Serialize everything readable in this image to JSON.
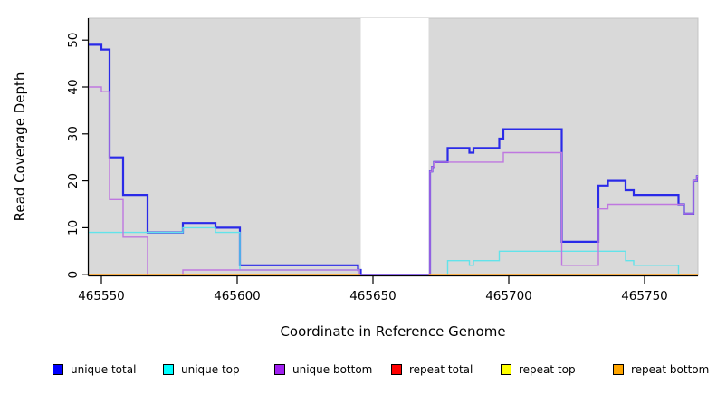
{
  "chart_data": {
    "type": "line",
    "title": "",
    "xlabel": "Coordinate in Reference Genome",
    "ylabel": "Read Coverage Depth",
    "step_type": "step-after",
    "grid": false,
    "legend_position": "bottom-horizontal",
    "xlim": [
      465545.3,
      465769.7
    ],
    "ylim": [
      0,
      54.7
    ],
    "x_ticks": {
      "values": [
        465550,
        465600,
        465650,
        465700,
        465750
      ],
      "labels": [
        "465550",
        "465600",
        "465650",
        "465700",
        "465750"
      ]
    },
    "y_ticks": {
      "values": [
        0,
        10,
        20,
        30,
        40,
        50
      ],
      "labels": [
        "0",
        "10",
        "20",
        "30",
        "40",
        "50"
      ]
    },
    "panel": {
      "background": "#d9d9d9",
      "border": "#c4c4c4"
    },
    "gap_region": {
      "x_start": 465645.5,
      "x_end": 465670.5,
      "color": "#ffffff"
    },
    "series": [
      {
        "name": "unique total",
        "legend_color": "#0000ff",
        "line_color": "#2a2ae8",
        "line_width": 2.2,
        "segments": [
          [
            [
              465545.3,
              49
            ],
            [
              465550,
              48
            ],
            [
              465553,
              25
            ],
            [
              465558,
              17
            ],
            [
              465567,
              9
            ],
            [
              465580,
              11
            ],
            [
              465592,
              10
            ],
            [
              465601,
              2
            ],
            [
              465644.5,
              1
            ],
            [
              465645.5,
              0
            ],
            [
              465671,
              22
            ],
            [
              465671.8,
              23
            ],
            [
              465672.5,
              24
            ],
            [
              465677.5,
              27
            ],
            [
              465685.5,
              26
            ],
            [
              465687,
              27
            ],
            [
              465696.5,
              29
            ],
            [
              465698,
              31
            ],
            [
              465719.5,
              7
            ],
            [
              465733,
              19
            ],
            [
              465736.5,
              20
            ],
            [
              465743,
              18
            ],
            [
              465746,
              17
            ],
            [
              465762.5,
              15
            ],
            [
              465764.5,
              13
            ],
            [
              465768,
              20
            ],
            [
              465769.3,
              21
            ],
            [
              465769.7,
              21
            ]
          ]
        ]
      },
      {
        "name": "unique top",
        "legend_color": "#00ffff",
        "line_color": "#62e3ea",
        "line_width": 1.4,
        "segments": [
          [
            [
              465545.3,
              9
            ],
            [
              465580,
              10
            ],
            [
              465592,
              9
            ],
            [
              465601,
              1
            ],
            [
              465645,
              0
            ],
            [
              465677.5,
              3
            ],
            [
              465685.5,
              2
            ],
            [
              465687,
              3
            ],
            [
              465696.5,
              5
            ],
            [
              465743,
              3
            ],
            [
              465746,
              2
            ],
            [
              465762.5,
              0
            ],
            [
              465769.7,
              0
            ]
          ]
        ]
      },
      {
        "name": "unique bottom",
        "legend_color": "#a020f0",
        "line_color": "#bf77e0",
        "line_width": 1.4,
        "segments": [
          [
            [
              465545.3,
              40
            ],
            [
              465550,
              39
            ],
            [
              465553,
              16
            ],
            [
              465558,
              8
            ],
            [
              465567,
              0
            ],
            [
              465580,
              1
            ],
            [
              465645,
              0
            ],
            [
              465671,
              22
            ],
            [
              465671.8,
              23
            ],
            [
              465672.5,
              24
            ],
            [
              465698,
              26
            ],
            [
              465719.5,
              2
            ],
            [
              465733,
              14
            ],
            [
              465736.5,
              15
            ],
            [
              465764.5,
              13
            ],
            [
              465768,
              20
            ],
            [
              465769.3,
              21
            ],
            [
              465769.7,
              21
            ]
          ]
        ]
      },
      {
        "name": "repeat total",
        "legend_color": "#ff0000",
        "line_color": "#e83030",
        "line_width": 1.4,
        "segments": [
          [
            [
              465545.3,
              0
            ],
            [
              465645.3,
              0
            ]
          ],
          [
            [
              465670.5,
              0
            ],
            [
              465769.7,
              0
            ]
          ]
        ]
      },
      {
        "name": "repeat top",
        "legend_color": "#ffff00",
        "line_color": "#f0ee45",
        "line_width": 1.4,
        "segments": [
          [
            [
              465545.3,
              0
            ],
            [
              465645.3,
              0
            ]
          ],
          [
            [
              465670.5,
              0
            ],
            [
              465769.7,
              0
            ]
          ]
        ]
      },
      {
        "name": "repeat bottom",
        "legend_color": "#ffa500",
        "line_color": "#ff9f1c",
        "line_width": 2,
        "segments": [
          [
            [
              465545.3,
              0
            ],
            [
              465645.3,
              0
            ]
          ],
          [
            [
              465670.5,
              0
            ],
            [
              465769.7,
              0
            ]
          ]
        ]
      }
    ]
  },
  "legend": {
    "items": [
      {
        "label": "unique total",
        "color": "#0000ff",
        "x": 58
      },
      {
        "label": "unique top",
        "color": "#00ffff",
        "x": 180
      },
      {
        "label": "unique bottom",
        "color": "#a020f0",
        "x": 303
      },
      {
        "label": "repeat total",
        "color": "#ff0000",
        "x": 432
      },
      {
        "label": "repeat top",
        "color": "#ffff00",
        "x": 553
      },
      {
        "label": "repeat bottom",
        "color": "#ffa500",
        "x": 677
      }
    ]
  }
}
